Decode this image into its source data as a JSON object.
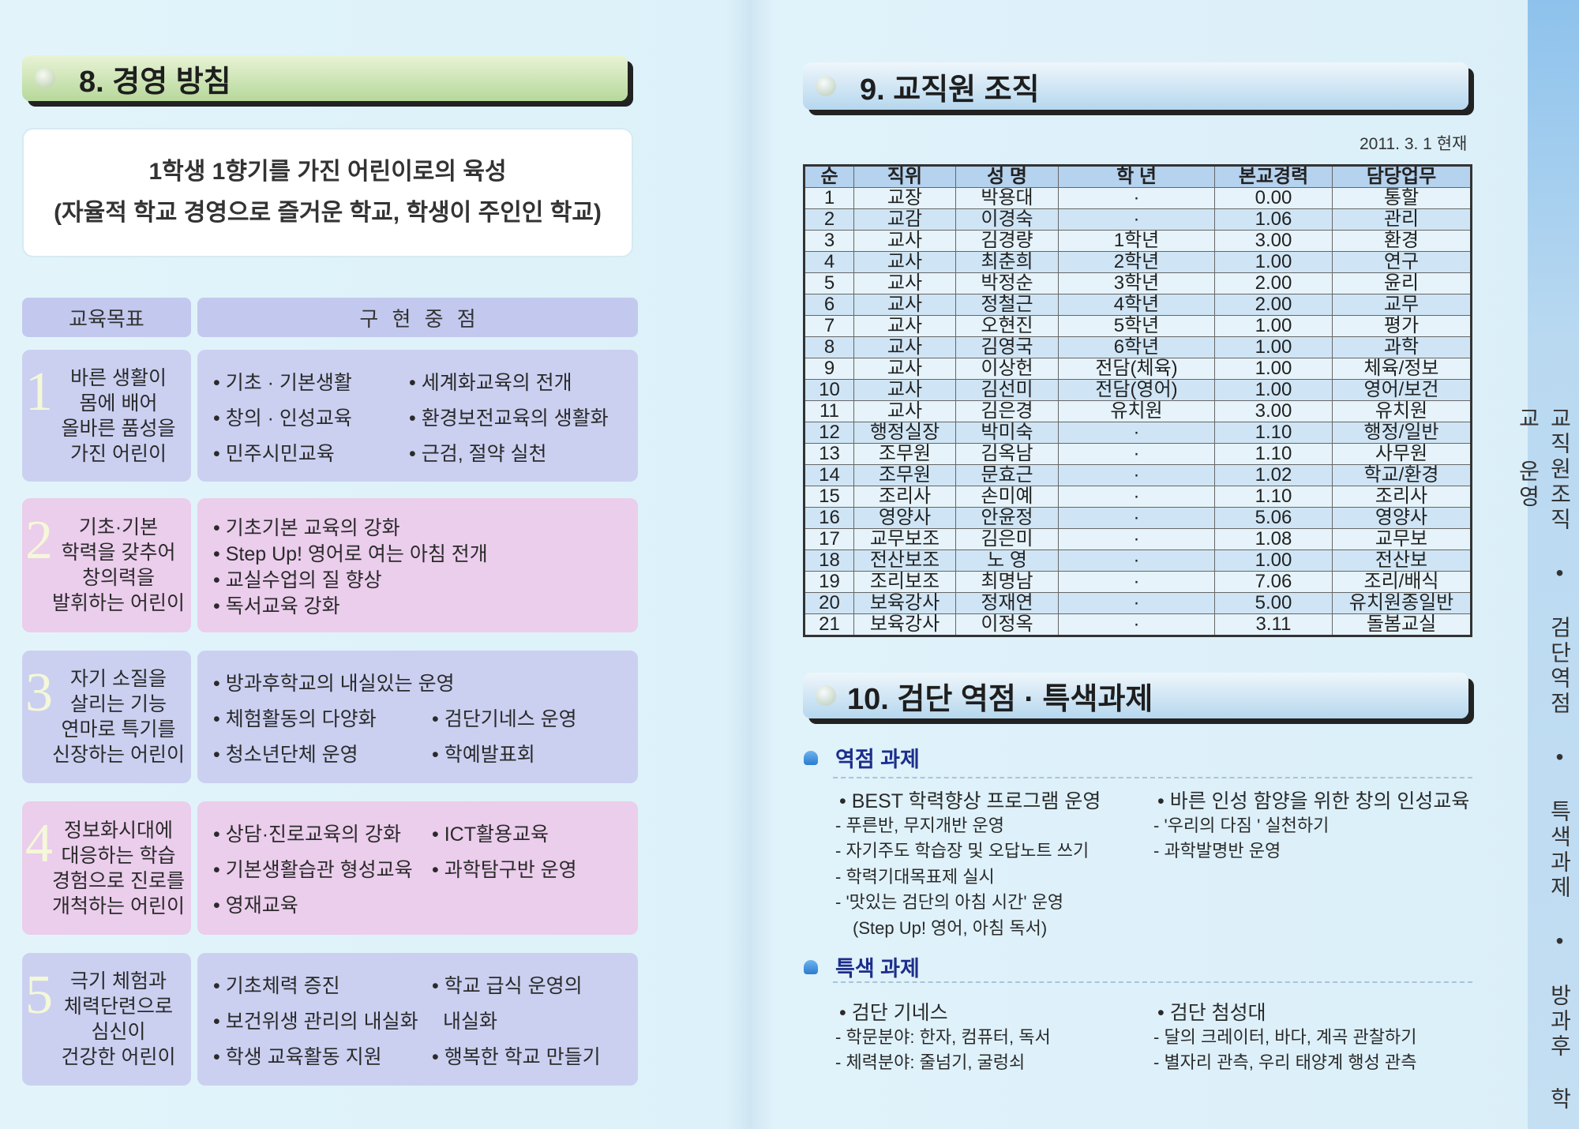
{
  "left_page": {
    "section_title": "8. 경영 방침",
    "motto": [
      "1학생 1향기를 가진 어린이로의 육성",
      "(자율적 학교 경영으로 즐거운 학교, 학생이 주인인 학교)"
    ],
    "headers": {
      "goal": "교육목표",
      "points": "구 현 중 점"
    },
    "rows": [
      {
        "num": "1",
        "goal": [
          "바른 생활이",
          "몸에 배어",
          "올바른 품성을",
          "가진 어린이"
        ],
        "left": [
          "• 기초 · 기본생활",
          "• 창의 · 인성교육",
          "• 민주시민교육"
        ],
        "right": [
          "• 세계화교육의 전개",
          "• 환경보전교육의 생활화",
          "• 근검, 절약 실천"
        ]
      },
      {
        "num": "2",
        "goal": [
          "기초·기본",
          "학력을 갖추어",
          "창의력을",
          "발휘하는 어린이"
        ],
        "left": [
          "• 기초기본 교육의 강화",
          "• Step Up! 영어로 여는 아침 전개",
          "• 교실수업의 질 향상",
          "• 독서교육 강화"
        ],
        "right": []
      },
      {
        "num": "3",
        "goal": [
          "자기 소질을",
          "살리는 기능",
          "연마로 특기를",
          "신장하는 어린이"
        ],
        "left": [
          "• 방과후학교의 내실있는 운영",
          "• 체험활동의 다양화",
          "• 청소년단체 운영"
        ],
        "right": [
          "• 검단기네스 운영",
          "• 학예발표회"
        ]
      },
      {
        "num": "4",
        "goal": [
          "정보화시대에",
          "대응하는 학습",
          "경험으로 진로를",
          "개척하는 어린이"
        ],
        "left": [
          "• 상담·진로교육의 강화",
          "• 기본생활습관 형성교육",
          "• 영재교육"
        ],
        "right": [
          "• ICT활용교육",
          "• 과학탐구반 운영"
        ]
      },
      {
        "num": "5",
        "goal": [
          "극기 체험과",
          "체력단련으로",
          "심신이",
          "건강한 어린이"
        ],
        "left": [
          "• 기초체력 증진",
          "• 보건위생 관리의 내실화",
          "• 학생 교육활동 지원"
        ],
        "right": [
          "• 학교 급식 운영의",
          "내실화",
          "• 행복한 학교 만들기"
        ]
      }
    ]
  },
  "right_page": {
    "section_title": "9. 교직원 조직",
    "date": "2011. 3. 1 현재",
    "table": {
      "columns": [
        "순",
        "직위",
        "성 명",
        "학 년",
        "본교경력",
        "담당업무"
      ],
      "rows": [
        [
          "1",
          "교장",
          "박용대",
          "·",
          "0.00",
          "통할"
        ],
        [
          "2",
          "교감",
          "이경숙",
          "·",
          "1.06",
          "관리"
        ],
        [
          "3",
          "교사",
          "김경량",
          "1학년",
          "3.00",
          "환경"
        ],
        [
          "4",
          "교사",
          "최춘희",
          "2학년",
          "1.00",
          "연구"
        ],
        [
          "5",
          "교사",
          "박정순",
          "3학년",
          "2.00",
          "윤리"
        ],
        [
          "6",
          "교사",
          "정철근",
          "4학년",
          "2.00",
          "교무"
        ],
        [
          "7",
          "교사",
          "오현진",
          "5학년",
          "1.00",
          "평가"
        ],
        [
          "8",
          "교사",
          "김영국",
          "6학년",
          "1.00",
          "과학"
        ],
        [
          "9",
          "교사",
          "이상헌",
          "전담(체육)",
          "1.00",
          "체육/정보"
        ],
        [
          "10",
          "교사",
          "김선미",
          "전담(영어)",
          "1.00",
          "영어/보건"
        ],
        [
          "11",
          "교사",
          "김은경",
          "유치원",
          "3.00",
          "유치원"
        ],
        [
          "12",
          "행정실장",
          "박미숙",
          "·",
          "1.10",
          "행정/일반"
        ],
        [
          "13",
          "조무원",
          "김옥남",
          "·",
          "1.10",
          "사무원"
        ],
        [
          "14",
          "조무원",
          "문효근",
          "·",
          "1.02",
          "학교/환경"
        ],
        [
          "15",
          "조리사",
          "손미예",
          "·",
          "1.10",
          "조리사"
        ],
        [
          "16",
          "영양사",
          "안윤정",
          "·",
          "5.06",
          "영양사"
        ],
        [
          "17",
          "교무보조",
          "김은미",
          "·",
          "1.08",
          "교무보"
        ],
        [
          "18",
          "전산보조",
          "노 영",
          "·",
          "1.00",
          "전산보"
        ],
        [
          "19",
          "조리보조",
          "최명남",
          "·",
          "7.06",
          "조리/배식"
        ],
        [
          "20",
          "보육강사",
          "정재연",
          "·",
          "5.00",
          "유치원종일반"
        ],
        [
          "21",
          "보육강사",
          "이정옥",
          "·",
          "3.11",
          "돌봄교실"
        ]
      ]
    },
    "section10_title": "10. 검단 역점 · 특색과제",
    "focus": {
      "heading": "역점 과제",
      "col1": [
        "• BEST 학력향상 프로그램 운영",
        "- 푸른반, 무지개반 운영",
        "- 자기주도 학습장 및 오답노트 쓰기",
        "- 학력기대목표제 실시",
        "- '맛있는 검단의 아침 시간' 운영",
        "(Step Up! 영어, 아침 독서)"
      ],
      "col2": [
        "• 바른 인성 함양을 위한 창의 인성교육",
        "- '우리의 다짐 ' 실천하기",
        "-  과학발명반 운영"
      ]
    },
    "special": {
      "heading": "특색 과제",
      "col1": [
        "• 검단 기네스",
        "- 학문분야: 한자, 컴퓨터, 독서",
        "- 체력분야: 줄넘기, 굴렁쇠"
      ],
      "col2": [
        "• 검단 첨성대",
        "- 달의 크레이터, 바다, 계곡 관찰하기",
        "- 별자리 관측, 우리 태양계 행성 관측"
      ]
    },
    "side_tab": "교직원조직 • 검단역점 • 특색과제 • 방과후 학교 운영"
  },
  "colors": {
    "goal_blue": "#cbd0f1",
    "goal_pink": "#ebcdec",
    "heading_navy": "#1c2e8a",
    "side_tab": "#b9d9f1"
  }
}
